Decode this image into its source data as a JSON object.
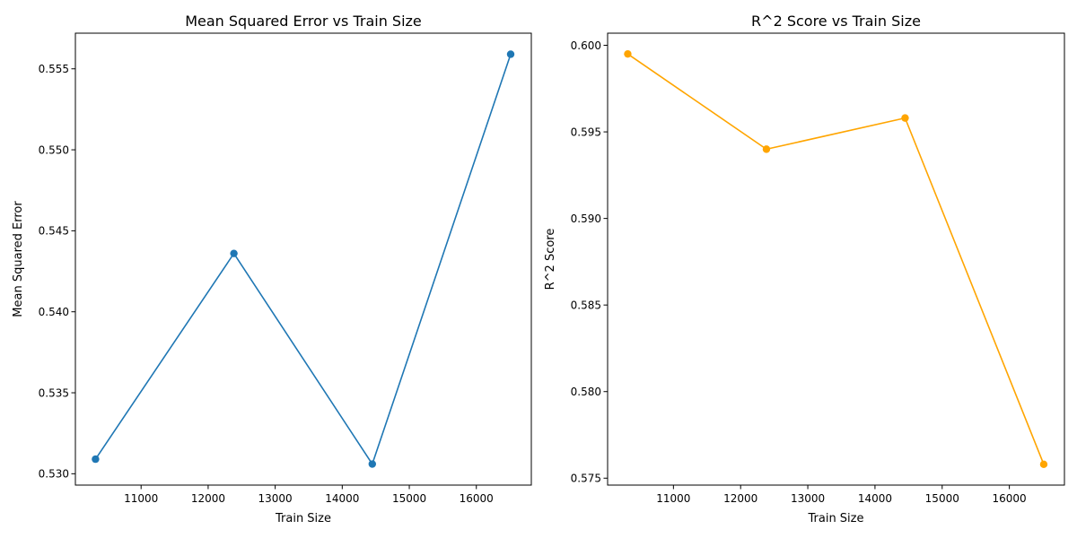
{
  "chart_data": [
    {
      "type": "line",
      "title": "Mean Squared Error vs Train Size",
      "xlabel": "Train Size",
      "ylabel": "Mean Squared Error",
      "xlim": [
        10020,
        16820
      ],
      "ylim": [
        0.5293,
        0.5572
      ],
      "xticks": [
        11000,
        12000,
        13000,
        14000,
        15000,
        16000
      ],
      "xtick_labels": [
        "11000",
        "12000",
        "13000",
        "14000",
        "15000",
        "16000"
      ],
      "yticks": [
        0.53,
        0.535,
        0.54,
        0.545,
        0.55,
        0.555
      ],
      "ytick_labels": [
        "0.530",
        "0.535",
        "0.540",
        "0.545",
        "0.550",
        "0.555"
      ],
      "grid": false,
      "legend": "none",
      "series": [
        {
          "color": "#1f77b4",
          "marker": "circle",
          "x": [
            10320,
            12384,
            14448,
            16512
          ],
          "y": [
            0.5309,
            0.5436,
            0.5306,
            0.5559
          ]
        }
      ]
    },
    {
      "type": "line",
      "title": "R^2 Score vs Train Size",
      "xlabel": "Train Size",
      "ylabel": "R^2 Score",
      "xlim": [
        10020,
        16820
      ],
      "ylim": [
        0.5746,
        0.6007
      ],
      "xticks": [
        11000,
        12000,
        13000,
        14000,
        15000,
        16000
      ],
      "xtick_labels": [
        "11000",
        "12000",
        "13000",
        "14000",
        "15000",
        "16000"
      ],
      "yticks": [
        0.575,
        0.58,
        0.585,
        0.59,
        0.595,
        0.6
      ],
      "ytick_labels": [
        "0.575",
        "0.580",
        "0.585",
        "0.590",
        "0.595",
        "0.600"
      ],
      "grid": false,
      "legend": "none",
      "series": [
        {
          "color": "#ffa500",
          "marker": "circle",
          "x": [
            10320,
            12384,
            14448,
            16512
          ],
          "y": [
            0.5995,
            0.594,
            0.5958,
            0.5758
          ]
        }
      ]
    }
  ]
}
